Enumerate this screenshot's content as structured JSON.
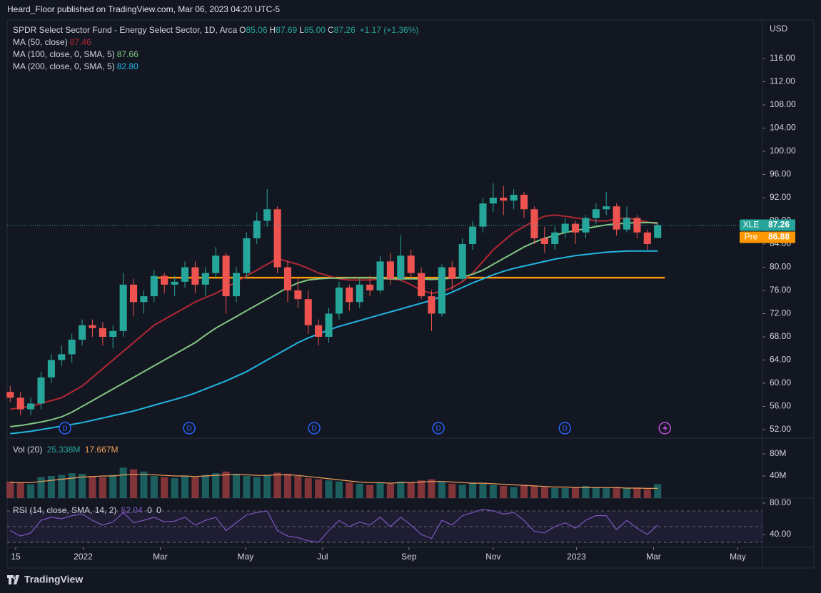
{
  "header": {
    "publisher": "Heard_Floor published on TradingView.com, Mar 06, 2023 04:20 UTC-5",
    "watermark": "TradingView"
  },
  "chart_data": {
    "type": "candlestick",
    "title": "SPDR Select Sector Fund - Energy Select Sector, 1D, Arca",
    "ohlc_legend": [
      {
        "label": "O",
        "value": "85.06"
      },
      {
        "label": "H",
        "value": "87.69"
      },
      {
        "label": "L",
        "value": "85.00"
      },
      {
        "label": "C",
        "value": "87.26"
      }
    ],
    "change": "+1.17 (+1.36%)",
    "currency": "USD",
    "x": [
      0,
      1,
      2,
      3,
      4,
      5,
      6,
      7,
      8,
      9,
      10,
      11,
      12,
      13,
      14,
      15,
      16,
      17,
      18,
      19,
      20,
      21,
      22,
      23,
      24,
      25,
      26,
      27,
      28,
      29,
      30,
      31,
      32,
      33,
      34,
      35,
      36,
      37,
      38,
      39,
      40,
      41,
      42,
      43,
      44,
      45,
      46,
      47,
      48,
      49,
      50,
      51,
      52,
      53,
      54,
      55,
      56,
      57,
      58,
      59,
      60,
      61,
      62,
      63
    ],
    "xlim": [
      -0.3,
      73.2
    ],
    "xticks": [
      {
        "value": 0.53,
        "label": "15"
      },
      {
        "value": 7.1,
        "label": "2022"
      },
      {
        "value": 14.6,
        "label": "Mar"
      },
      {
        "value": 22.9,
        "label": "May"
      },
      {
        "value": 30.4,
        "label": "Jul"
      },
      {
        "value": 38.8,
        "label": "Sep"
      },
      {
        "value": 47.0,
        "label": "Nov"
      },
      {
        "value": 55.1,
        "label": "2023"
      },
      {
        "value": 62.6,
        "label": "Mar"
      },
      {
        "value": 70.8,
        "label": "May"
      }
    ],
    "open": [
      58.5,
      57.5,
      55.5,
      56.5,
      61,
      64,
      65,
      67.5,
      70,
      69.5,
      68,
      69,
      77,
      74,
      75,
      78.5,
      77,
      77.5,
      80,
      77,
      79,
      82,
      75,
      79,
      85,
      88,
      90,
      80,
      76,
      74.5,
      70,
      68,
      72,
      76.5,
      74,
      77,
      76,
      81,
      78,
      82,
      79,
      75,
      72,
      80,
      78,
      84,
      87,
      91,
      92,
      91.5,
      92.5,
      90,
      85,
      84,
      86,
      87.5,
      86,
      88.5,
      90,
      90.5,
      86.5,
      88.5,
      86,
      85.06
    ],
    "high": [
      59.5,
      58.5,
      57.5,
      62,
      65,
      66.5,
      68.5,
      71,
      71,
      70.5,
      70,
      79,
      78,
      76,
      79.5,
      79,
      78.5,
      81,
      81,
      80,
      83.5,
      82.5,
      80,
      86,
      89.5,
      93.5,
      90.5,
      81,
      78,
      76,
      71,
      73,
      77.5,
      77,
      78,
      78.5,
      82,
      82.5,
      85.5,
      83,
      80,
      76,
      80.5,
      81,
      85,
      88,
      92,
      94.5,
      94,
      93.5,
      93,
      90.5,
      87,
      87,
      88.5,
      88,
      89,
      91,
      93,
      91,
      90.5,
      89,
      86.5,
      87.69
    ],
    "low": [
      56.8,
      54.5,
      54.5,
      55.5,
      60,
      63,
      63.5,
      66.5,
      68,
      66.5,
      66,
      68,
      71.5,
      72,
      74,
      75.5,
      75,
      76.5,
      75.5,
      75,
      78,
      72,
      74,
      78,
      84,
      87,
      79,
      74,
      73,
      68.5,
      66.5,
      67,
      71,
      72.5,
      73,
      75,
      75.5,
      77,
      77.5,
      78,
      74.5,
      69,
      71.5,
      76,
      77.5,
      83,
      86,
      89.5,
      89,
      90,
      88.5,
      84,
      82.5,
      83,
      85,
      84,
      85,
      87.5,
      89,
      85.5,
      86,
      85,
      83,
      85.0
    ],
    "close": [
      57.5,
      55.5,
      56.5,
      61,
      64,
      65,
      67.5,
      70,
      69.5,
      68,
      69,
      77,
      74,
      75,
      78.5,
      77,
      77.5,
      80,
      77,
      79,
      82,
      75,
      79,
      85,
      88,
      90,
      80,
      76,
      74.5,
      70,
      68,
      72,
      76.5,
      74,
      77,
      76,
      81,
      78,
      82,
      79,
      75,
      72,
      80,
      78,
      84,
      87,
      91,
      92,
      91.5,
      92.5,
      90,
      85,
      84,
      86,
      87.5,
      86,
      88.5,
      90,
      90.5,
      86.5,
      88.5,
      86,
      84,
      87.26
    ],
    "up_color": "#26a69a",
    "down_color": "#ef5350",
    "ylim": [
      50.77,
      122.4
    ],
    "yticks": [
      {
        "value": 52,
        "label": "52.00"
      },
      {
        "value": 56,
        "label": "56.00"
      },
      {
        "value": 60,
        "label": "60.00"
      },
      {
        "value": 64,
        "label": "64.00"
      },
      {
        "value": 68,
        "label": "68.00"
      },
      {
        "value": 72,
        "label": "72.00"
      },
      {
        "value": 76,
        "label": "76.00"
      },
      {
        "value": 80,
        "label": "80.00"
      },
      {
        "value": 84,
        "label": "84.00"
      },
      {
        "value": 88,
        "label": "88.00"
      },
      {
        "value": 92,
        "label": "92.00"
      },
      {
        "value": 96,
        "label": "96.00"
      },
      {
        "value": 100,
        "label": "100.00"
      },
      {
        "value": 104,
        "label": "104.00"
      },
      {
        "value": 108,
        "label": "108.00"
      },
      {
        "value": 112,
        "label": "112.00"
      },
      {
        "value": 116,
        "label": "116.00"
      }
    ],
    "grid": false,
    "ma": [
      {
        "name": "MA (50, close)",
        "last_label": "87.46",
        "color": "#b22833",
        "values": [
          55.5,
          55.8,
          56,
          56.5,
          57,
          57.5,
          58.5,
          59.5,
          61,
          62.5,
          64,
          65.5,
          67,
          68.5,
          70,
          71,
          72,
          73,
          74,
          74.8,
          75.5,
          76.5,
          77.5,
          78.5,
          79.5,
          80.5,
          81.5,
          81,
          80.5,
          79.8,
          79,
          78.5,
          78,
          77.8,
          77.8,
          77.8,
          78,
          78,
          77.8,
          77,
          76,
          75.5,
          75.8,
          76.5,
          77.5,
          79,
          81,
          83,
          84.5,
          86,
          87,
          88,
          88.8,
          89,
          88.8,
          88.5,
          88.3,
          88,
          88,
          88.3,
          88.5,
          88.2,
          87.8,
          87.46
        ]
      },
      {
        "name": "MA (100, close, 0, SMA, 5)",
        "last_label": "87.66",
        "color": "#81c784",
        "values": [
          52.5,
          52.7,
          53,
          53.3,
          53.7,
          54.2,
          55,
          56,
          57,
          58,
          59,
          60,
          61,
          62,
          63,
          64,
          65,
          66,
          67,
          68.3,
          69.5,
          70.5,
          71.5,
          72.5,
          73.5,
          74.5,
          75.5,
          76.5,
          77.3,
          77.8,
          78,
          78.1,
          78.1,
          78.2,
          78.2,
          78.2,
          78.1,
          78,
          78,
          78,
          78,
          77.9,
          78,
          78.1,
          78.3,
          78.8,
          79.5,
          80.5,
          81.5,
          82.5,
          83.5,
          84.3,
          85,
          85.5,
          86,
          86.3,
          86.7,
          87,
          87.3,
          87.5,
          87.6,
          87.7,
          87.7,
          87.66
        ]
      },
      {
        "name": "MA (200, close, 0, SMA, 5)",
        "last_label": "82.80",
        "color": "#22b5e0",
        "values": [
          51.3,
          51.5,
          51.7,
          52,
          52.3,
          52.6,
          52.9,
          53.2,
          53.6,
          54,
          54.4,
          54.8,
          55.2,
          55.7,
          56.2,
          56.7,
          57.2,
          57.7,
          58.3,
          59,
          59.7,
          60.4,
          61.2,
          62,
          63,
          64,
          65,
          66,
          67,
          67.8,
          68.5,
          69.2,
          69.8,
          70.3,
          70.8,
          71.3,
          71.8,
          72.3,
          72.8,
          73.3,
          73.8,
          74.3,
          75,
          75.7,
          76.5,
          77.3,
          78,
          78.7,
          79.3,
          79.8,
          80.2,
          80.6,
          81,
          81.4,
          81.7,
          82,
          82.2,
          82.4,
          82.6,
          82.7,
          82.8,
          82.8,
          82.8,
          82.8
        ]
      }
    ],
    "price_line": 87.26,
    "price_tags": [
      {
        "label": "XLE",
        "value": "87.26",
        "color": "#26a69a"
      },
      {
        "label": "Pre",
        "value": "86.88",
        "color": "#ff9800"
      }
    ],
    "hline": {
      "value": 78.2,
      "from": 14.3,
      "to": 63.7,
      "color": "#ff9800"
    },
    "events": [
      {
        "x": 5.33,
        "label": "D"
      },
      {
        "x": 17.42,
        "label": "D"
      },
      {
        "x": 29.58,
        "label": "D"
      },
      {
        "x": 41.67,
        "label": "D"
      },
      {
        "x": 53.97,
        "label": "D"
      },
      {
        "x": 63.7,
        "kind": "earnings"
      }
    ],
    "volume": {
      "title": "Vol (20)",
      "legend_labels": [
        "25.338M",
        "17.667M"
      ],
      "values": [
        30,
        28,
        25,
        38,
        40,
        42,
        45,
        44,
        40,
        38,
        42,
        55,
        52,
        48,
        40,
        38,
        36,
        40,
        38,
        42,
        45,
        48,
        44,
        40,
        38,
        42,
        46,
        44,
        40,
        36,
        34,
        32,
        30,
        28,
        26,
        24,
        28,
        26,
        30,
        28,
        32,
        34,
        30,
        26,
        24,
        28,
        26,
        24,
        22,
        20,
        24,
        22,
        20,
        18,
        18,
        20,
        22,
        20,
        18,
        20,
        18,
        18,
        16,
        25.338
      ],
      "ma_color": "#f5a05a",
      "ma_values": [
        28,
        28,
        28,
        30,
        32,
        34,
        36,
        38,
        39,
        40,
        40,
        42,
        43,
        43,
        42,
        41,
        40,
        40,
        39,
        40,
        41,
        42,
        43,
        42,
        41,
        41,
        42,
        42,
        41,
        39,
        37,
        35,
        33,
        31,
        29,
        28,
        28,
        27,
        28,
        28,
        29,
        30,
        30,
        29,
        28,
        27,
        27,
        26,
        25,
        24,
        23,
        22,
        21,
        20,
        20,
        19,
        19,
        19,
        19,
        19,
        18,
        18,
        17.5,
        17.667
      ],
      "ylim": [
        0,
        104.5
      ],
      "yticks": [
        {
          "value": 40,
          "label": "40M"
        },
        {
          "value": 80,
          "label": "80M"
        }
      ]
    },
    "rsi": {
      "title": "RSI (14, close, SMA, 14, 2)",
      "legend_values": [
        52.04,
        0,
        0
      ],
      "color": "#7e57c2",
      "values": [
        45,
        38,
        42,
        58,
        62,
        60,
        64,
        66,
        58,
        52,
        56,
        68,
        55,
        58,
        62,
        56,
        57,
        62,
        52,
        58,
        62,
        45,
        55,
        65,
        68,
        70,
        45,
        38,
        36,
        32,
        30,
        45,
        58,
        50,
        56,
        52,
        62,
        50,
        62,
        52,
        40,
        35,
        58,
        52,
        64,
        68,
        72,
        70,
        66,
        68,
        58,
        44,
        42,
        50,
        55,
        48,
        58,
        64,
        64,
        46,
        58,
        48,
        40,
        52.04
      ],
      "ylim": [
        25.5,
        84.5
      ],
      "yticks": [
        {
          "value": 40,
          "label": "40.00"
        },
        {
          "value": 80,
          "label": "80.00"
        }
      ],
      "bands": [
        70,
        50,
        30
      ]
    }
  }
}
